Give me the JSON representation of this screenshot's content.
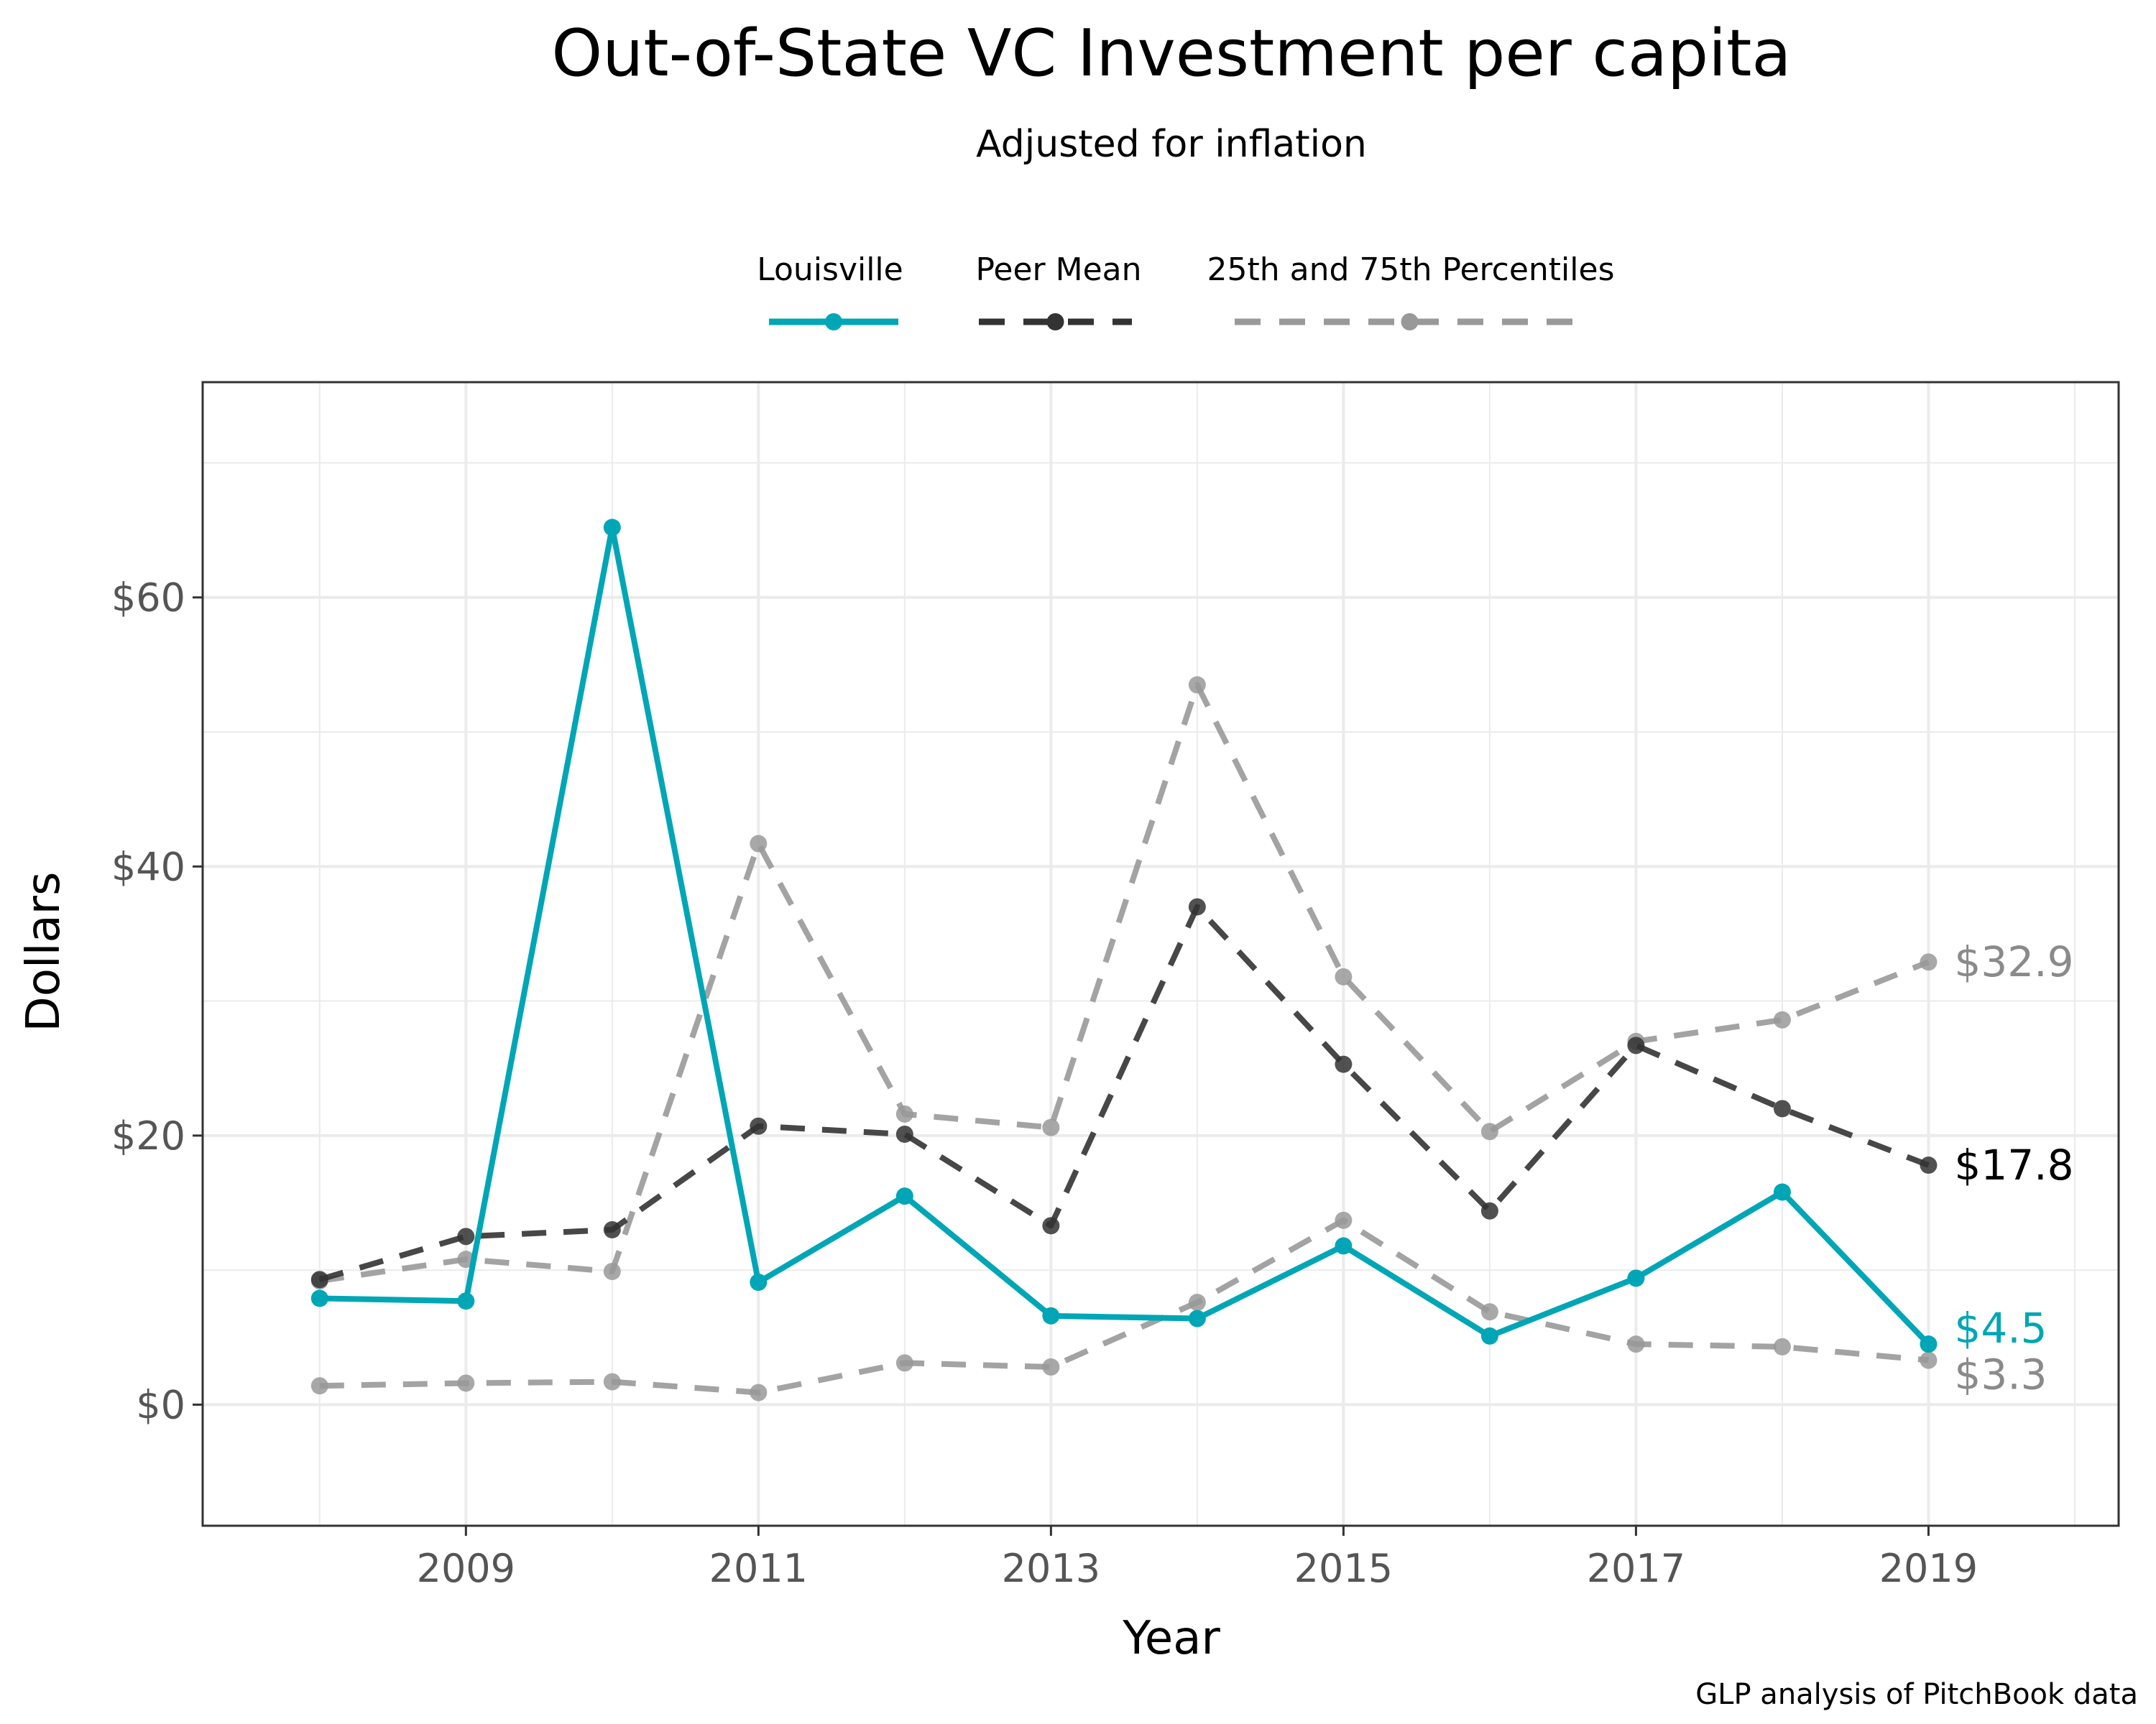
{
  "chart_data": {
    "type": "line",
    "title": "Out-of-State VC Investment per capita",
    "subtitle": "Adjusted for inflation",
    "xlabel": "Year",
    "ylabel": "Dollars",
    "caption": "GLP analysis of PitchBook data",
    "xlim": [
      2007.2,
      2020.3
    ],
    "ylim": [
      -9,
      76
    ],
    "x_ticks": [
      2009,
      2011,
      2013,
      2015,
      2017,
      2019
    ],
    "x_tick_labels": [
      "2009",
      "2011",
      "2013",
      "2015",
      "2017",
      "2019"
    ],
    "y_ticks": [
      0,
      20,
      40,
      60
    ],
    "y_tick_labels": [
      "$0",
      "$20",
      "$40",
      "$60"
    ],
    "grid": true,
    "legend_position": "top",
    "x": [
      2008,
      2009,
      2010,
      2011,
      2012,
      2013,
      2014,
      2015,
      2016,
      2017,
      2018,
      2019
    ],
    "series": [
      {
        "name": "25th and 75th Percentiles",
        "key": "p75",
        "color": "#999999",
        "style": "dashed",
        "values": [
          9.2,
          10.8,
          9.9,
          41.7,
          21.6,
          20.6,
          53.5,
          31.8,
          20.3,
          27.0,
          28.6,
          32.9
        ],
        "end_label": "$32.9"
      },
      {
        "name": "25th and 75th Percentiles",
        "key": "p25",
        "color": "#999999",
        "style": "dashed",
        "values": [
          1.4,
          1.6,
          1.7,
          0.9,
          3.1,
          2.8,
          7.6,
          13.7,
          6.9,
          4.5,
          4.3,
          3.3
        ],
        "end_label": "$3.3"
      },
      {
        "name": "Peer Mean",
        "key": "mean",
        "color": "#333333",
        "style": "dashed",
        "values": [
          9.3,
          12.5,
          13.0,
          20.7,
          20.1,
          13.3,
          37.0,
          25.3,
          14.4,
          26.7,
          22.0,
          17.8
        ],
        "end_label": "$17.8"
      },
      {
        "name": "Louisville",
        "key": "louisville",
        "color": "#00A6B5",
        "style": "solid",
        "values": [
          7.9,
          7.7,
          65.2,
          9.1,
          15.5,
          6.6,
          6.4,
          11.8,
          5.1,
          9.4,
          15.8,
          4.5
        ],
        "end_label": "$4.5"
      }
    ],
    "legend": [
      {
        "label": "Louisville",
        "color": "#00A6B5",
        "style": "solid"
      },
      {
        "label": "Peer Mean",
        "color": "#333333",
        "style": "dashed"
      },
      {
        "label": "25th and 75th Percentiles",
        "color": "#999999",
        "style": "dashed"
      }
    ]
  }
}
